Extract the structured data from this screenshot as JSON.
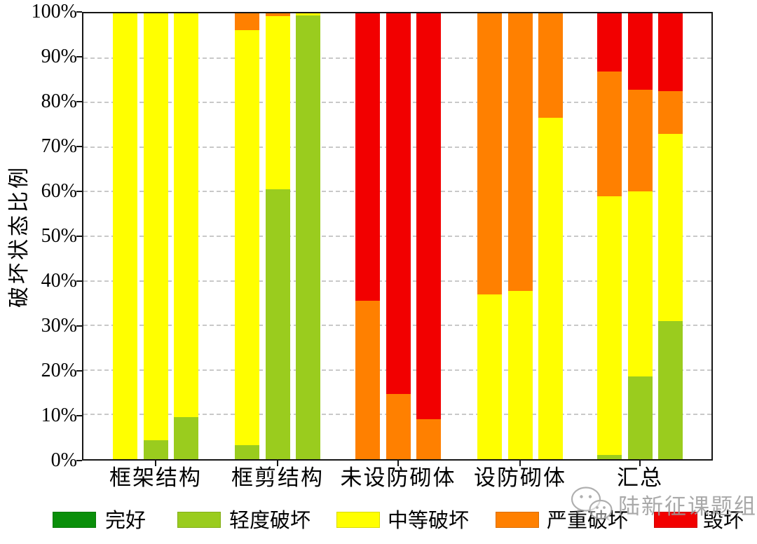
{
  "chart_data": {
    "type": "bar",
    "variant": "stacked-percentage",
    "title": "",
    "ylabel": "破坏状态比例",
    "ylim": [
      0,
      100
    ],
    "ytick_step": 10,
    "ytick_labels": [
      "0%",
      "10%",
      "20%",
      "30%",
      "40%",
      "50%",
      "60%",
      "70%",
      "80%",
      "90%",
      "100%"
    ],
    "grid": "horizontal-dashed",
    "legend_position": "bottom",
    "bars_per_category": 3,
    "categories": [
      "框架结构",
      "框剪结构",
      "未设防砌体",
      "设防砌体",
      "汇总"
    ],
    "series_names": [
      "完好",
      "轻度破坏",
      "中等破坏",
      "严重破坏",
      "毁坏"
    ],
    "series_colors": [
      "#0a8f0a",
      "#9acc1e",
      "#ffff00",
      "#ff8000",
      "#f20000"
    ],
    "groups": [
      {
        "label": "框架结构",
        "bars": [
          [
            0,
            0,
            100,
            0,
            0
          ],
          [
            0,
            4.2,
            95.8,
            0,
            0
          ],
          [
            0,
            9.5,
            90.5,
            0,
            0
          ]
        ]
      },
      {
        "label": "框剪结构",
        "bars": [
          [
            0,
            3.2,
            93.0,
            3.8,
            0
          ],
          [
            0,
            60.5,
            38.8,
            0.7,
            0
          ],
          [
            0,
            99.5,
            0.5,
            0,
            0
          ]
        ]
      },
      {
        "label": "未设防砌体",
        "bars": [
          [
            0,
            0,
            0,
            35.5,
            64.5
          ],
          [
            0,
            0,
            0,
            14.7,
            85.3
          ],
          [
            0,
            0,
            0,
            9.0,
            91.0
          ]
        ]
      },
      {
        "label": "设防砌体",
        "bars": [
          [
            0,
            0,
            37.0,
            63.0,
            0
          ],
          [
            0,
            0,
            37.8,
            62.2,
            0
          ],
          [
            0,
            0,
            76.5,
            23.5,
            0
          ]
        ]
      },
      {
        "label": "汇总",
        "bars": [
          [
            0,
            1.0,
            58.0,
            28.0,
            13.0
          ],
          [
            0,
            18.6,
            41.4,
            22.8,
            17.2
          ],
          [
            0,
            31.0,
            42.0,
            9.5,
            17.5
          ]
        ]
      }
    ]
  },
  "watermark": {
    "text": "陆新征课题组",
    "icon": "wechat-icon",
    "color": "#9b9b9b"
  }
}
